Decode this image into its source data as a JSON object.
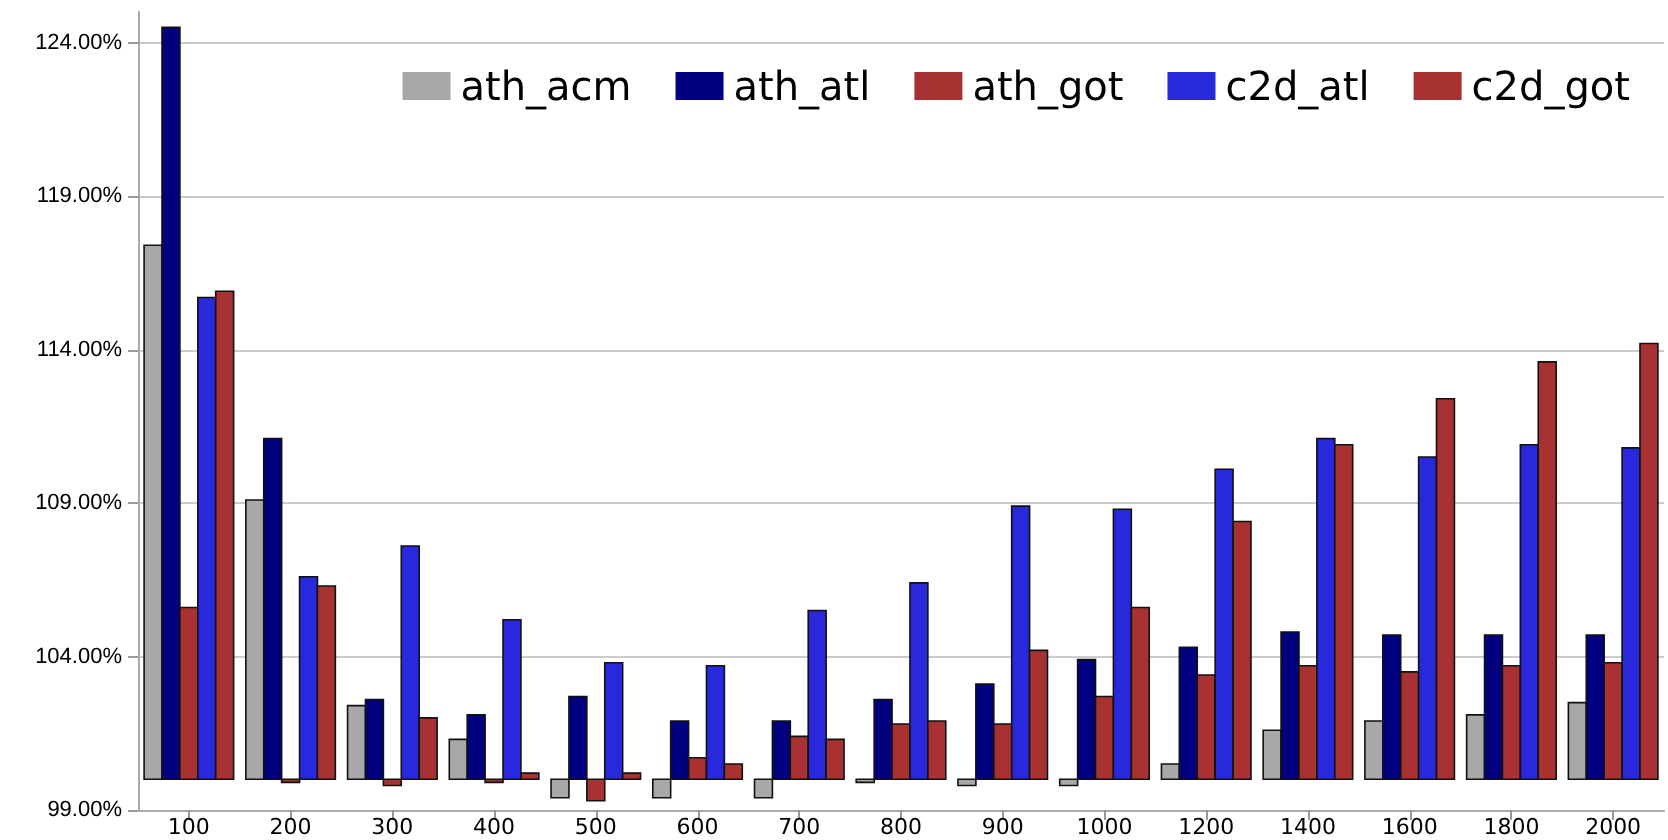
{
  "chart_data": {
    "type": "bar",
    "categories": [
      "100",
      "200",
      "300",
      "400",
      "500",
      "600",
      "700",
      "800",
      "900",
      "1000",
      "1200",
      "1400",
      "1600",
      "1800",
      "2000"
    ],
    "series": [
      {
        "name": "ath_acm",
        "color": "#a8a8a8",
        "base": [
          100,
          100,
          100,
          100,
          100,
          100,
          100,
          100,
          100,
          100,
          100,
          100,
          100,
          100,
          100
        ],
        "values": [
          17.4,
          9.1,
          2.4,
          1.3,
          -0.6,
          -0.6,
          -0.6,
          -0.1,
          -0.2,
          -0.2,
          0.5,
          1.6,
          1.9,
          2.1,
          2.5
        ]
      },
      {
        "name": "ath_atl",
        "color": "#000080",
        "base": [
          100,
          100,
          100,
          100,
          100,
          100,
          100,
          100,
          100,
          100,
          100,
          100,
          100,
          100,
          100
        ],
        "values": [
          24.5,
          11.1,
          2.6,
          2.1,
          2.7,
          1.9,
          1.9,
          2.6,
          3.1,
          3.9,
          4.3,
          4.8,
          4.7,
          4.7,
          4.7
        ]
      },
      {
        "name": "ath_got",
        "color": "#a83232",
        "base": [
          100,
          100,
          100,
          100,
          100,
          100,
          100,
          100,
          100,
          100,
          100,
          100,
          100,
          100,
          100
        ],
        "values": [
          5.6,
          -0.1,
          -0.2,
          -0.1,
          -0.7,
          0.7,
          1.4,
          1.8,
          1.8,
          2.7,
          3.4,
          3.7,
          3.5,
          3.7,
          3.8
        ]
      },
      {
        "name": "c2d_atl",
        "color": "#2828dc",
        "base": [
          100,
          100,
          100,
          100,
          100,
          100,
          100,
          100,
          100,
          100,
          100,
          100,
          100,
          100,
          100
        ],
        "values": [
          15.7,
          6.6,
          7.6,
          5.2,
          3.8,
          3.7,
          5.5,
          6.4,
          8.9,
          8.8,
          10.1,
          11.1,
          10.5,
          10.9,
          10.8
        ]
      },
      {
        "name": "c2d_got",
        "color": "#a83232",
        "base": [
          100,
          100,
          100,
          100,
          100,
          100,
          100,
          100,
          100,
          100,
          100,
          100,
          100,
          100,
          100
        ],
        "values": [
          15.9,
          6.3,
          2.0,
          0.2,
          0.2,
          0.5,
          1.3,
          1.9,
          4.2,
          5.6,
          8.4,
          10.9,
          12.4,
          13.6,
          14.2
        ]
      }
    ],
    "ylim": [
      99,
      125
    ],
    "yticks": [
      {
        "value": 99,
        "label": "99.00%"
      },
      {
        "value": 104,
        "label": "104.00%"
      },
      {
        "value": 109,
        "label": "109.00%"
      },
      {
        "value": 114,
        "label": "114.00%"
      },
      {
        "value": 119,
        "label": "119.00%"
      },
      {
        "value": 124,
        "label": "124.00%"
      }
    ],
    "grid": "y",
    "legend": "top right"
  }
}
